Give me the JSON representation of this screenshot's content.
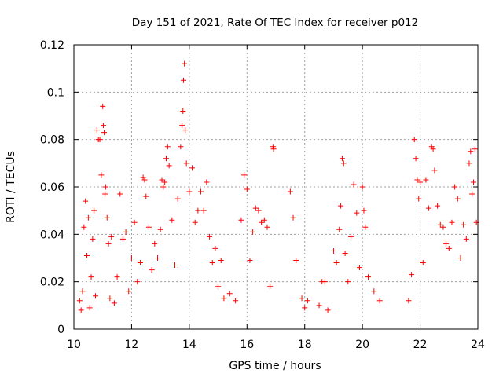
{
  "chart_data": {
    "type": "scatter",
    "title": "Day 151 of 2021, Rate Of TEC Index for receiver p012",
    "xlabel": "GPS time / hours",
    "ylabel": "ROTI / TECUs",
    "xlim": [
      10,
      24
    ],
    "ylim": [
      0,
      0.12
    ],
    "x_ticks": [
      "10",
      "12",
      "14",
      "16",
      "18",
      "20",
      "22",
      "24"
    ],
    "y_ticks": [
      "0",
      "0.02",
      "0.04",
      "0.06",
      "0.08",
      "0.1",
      "0.12"
    ],
    "x_tick_values": [
      10,
      12,
      14,
      16,
      18,
      20,
      22,
      24
    ],
    "y_tick_values": [
      0,
      0.02,
      0.04,
      0.06,
      0.08,
      0.1,
      0.12
    ],
    "grid": true,
    "marker": "plus",
    "color": "#ff0000",
    "legend": "none",
    "points": [
      [
        10.2,
        0.012
      ],
      [
        10.25,
        0.008
      ],
      [
        10.3,
        0.016
      ],
      [
        10.35,
        0.043
      ],
      [
        10.4,
        0.054
      ],
      [
        10.45,
        0.031
      ],
      [
        10.5,
        0.047
      ],
      [
        10.55,
        0.009
      ],
      [
        10.6,
        0.022
      ],
      [
        10.65,
        0.038
      ],
      [
        10.7,
        0.05
      ],
      [
        10.75,
        0.014
      ],
      [
        10.8,
        0.084
      ],
      [
        10.85,
        0.08
      ],
      [
        10.9,
        0.08
      ],
      [
        10.95,
        0.065
      ],
      [
        11.0,
        0.094
      ],
      [
        11.02,
        0.086
      ],
      [
        11.05,
        0.083
      ],
      [
        11.08,
        0.057
      ],
      [
        11.1,
        0.06
      ],
      [
        11.15,
        0.047
      ],
      [
        11.2,
        0.036
      ],
      [
        11.25,
        0.013
      ],
      [
        11.3,
        0.039
      ],
      [
        11.4,
        0.011
      ],
      [
        11.5,
        0.022
      ],
      [
        11.6,
        0.057
      ],
      [
        11.7,
        0.038
      ],
      [
        11.8,
        0.041
      ],
      [
        11.9,
        0.016
      ],
      [
        12.0,
        0.03
      ],
      [
        12.1,
        0.045
      ],
      [
        12.2,
        0.02
      ],
      [
        12.3,
        0.028
      ],
      [
        12.4,
        0.064
      ],
      [
        12.45,
        0.063
      ],
      [
        12.5,
        0.056
      ],
      [
        12.6,
        0.043
      ],
      [
        12.7,
        0.025
      ],
      [
        12.8,
        0.036
      ],
      [
        12.9,
        0.03
      ],
      [
        13.0,
        0.042
      ],
      [
        13.05,
        0.063
      ],
      [
        13.1,
        0.06
      ],
      [
        13.15,
        0.062
      ],
      [
        13.2,
        0.072
      ],
      [
        13.25,
        0.077
      ],
      [
        13.3,
        0.069
      ],
      [
        13.4,
        0.046
      ],
      [
        13.5,
        0.027
      ],
      [
        13.6,
        0.055
      ],
      [
        13.7,
        0.077
      ],
      [
        13.75,
        0.086
      ],
      [
        13.78,
        0.092
      ],
      [
        13.8,
        0.105
      ],
      [
        13.83,
        0.112
      ],
      [
        13.86,
        0.084
      ],
      [
        13.9,
        0.07
      ],
      [
        14.0,
        0.058
      ],
      [
        14.1,
        0.068
      ],
      [
        14.2,
        0.045
      ],
      [
        14.3,
        0.05
      ],
      [
        14.4,
        0.058
      ],
      [
        14.5,
        0.05
      ],
      [
        14.6,
        0.062
      ],
      [
        14.7,
        0.039
      ],
      [
        14.8,
        0.028
      ],
      [
        14.9,
        0.034
      ],
      [
        15.0,
        0.018
      ],
      [
        15.1,
        0.029
      ],
      [
        15.2,
        0.013
      ],
      [
        15.4,
        0.015
      ],
      [
        15.6,
        0.012
      ],
      [
        15.8,
        0.046
      ],
      [
        15.9,
        0.065
      ],
      [
        16.0,
        0.059
      ],
      [
        16.1,
        0.029
      ],
      [
        16.2,
        0.041
      ],
      [
        16.3,
        0.051
      ],
      [
        16.4,
        0.05
      ],
      [
        16.5,
        0.045
      ],
      [
        16.6,
        0.046
      ],
      [
        16.7,
        0.043
      ],
      [
        16.8,
        0.018
      ],
      [
        16.9,
        0.077
      ],
      [
        16.92,
        0.076
      ],
      [
        17.5,
        0.058
      ],
      [
        17.6,
        0.047
      ],
      [
        17.7,
        0.029
      ],
      [
        17.9,
        0.013
      ],
      [
        18.0,
        0.009
      ],
      [
        18.1,
        0.012
      ],
      [
        18.5,
        0.01
      ],
      [
        18.6,
        0.02
      ],
      [
        18.7,
        0.02
      ],
      [
        18.8,
        0.008
      ],
      [
        19.0,
        0.033
      ],
      [
        19.1,
        0.028
      ],
      [
        19.2,
        0.042
      ],
      [
        19.25,
        0.052
      ],
      [
        19.3,
        0.072
      ],
      [
        19.35,
        0.07
      ],
      [
        19.4,
        0.032
      ],
      [
        19.5,
        0.02
      ],
      [
        19.6,
        0.039
      ],
      [
        19.7,
        0.061
      ],
      [
        19.8,
        0.049
      ],
      [
        19.9,
        0.026
      ],
      [
        20.0,
        0.06
      ],
      [
        20.05,
        0.05
      ],
      [
        20.1,
        0.043
      ],
      [
        20.2,
        0.022
      ],
      [
        20.4,
        0.016
      ],
      [
        20.6,
        0.012
      ],
      [
        21.6,
        0.012
      ],
      [
        21.7,
        0.023
      ],
      [
        21.8,
        0.08
      ],
      [
        21.85,
        0.072
      ],
      [
        21.9,
        0.063
      ],
      [
        21.95,
        0.055
      ],
      [
        22.0,
        0.062
      ],
      [
        22.1,
        0.028
      ],
      [
        22.2,
        0.063
      ],
      [
        22.3,
        0.051
      ],
      [
        22.4,
        0.077
      ],
      [
        22.45,
        0.076
      ],
      [
        22.5,
        0.067
      ],
      [
        22.6,
        0.052
      ],
      [
        22.7,
        0.044
      ],
      [
        22.8,
        0.043
      ],
      [
        22.9,
        0.036
      ],
      [
        23.0,
        0.034
      ],
      [
        23.1,
        0.045
      ],
      [
        23.2,
        0.06
      ],
      [
        23.3,
        0.055
      ],
      [
        23.4,
        0.03
      ],
      [
        23.5,
        0.044
      ],
      [
        23.6,
        0.038
      ],
      [
        23.7,
        0.07
      ],
      [
        23.75,
        0.075
      ],
      [
        23.8,
        0.057
      ],
      [
        23.85,
        0.062
      ],
      [
        23.9,
        0.076
      ],
      [
        23.95,
        0.045
      ]
    ]
  }
}
